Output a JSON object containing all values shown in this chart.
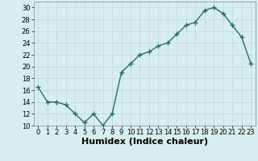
{
  "x": [
    0,
    1,
    2,
    3,
    4,
    5,
    6,
    7,
    8,
    9,
    10,
    11,
    12,
    13,
    14,
    15,
    16,
    17,
    18,
    19,
    20,
    21,
    22,
    23
  ],
  "y": [
    16.5,
    14.0,
    14.0,
    13.5,
    12.0,
    10.5,
    12.0,
    10.0,
    12.0,
    19.0,
    20.5,
    22.0,
    22.5,
    23.5,
    24.0,
    25.5,
    27.0,
    27.5,
    29.5,
    30.0,
    29.0,
    27.0,
    25.0,
    20.5
  ],
  "line_color": "#2e6b5e",
  "marker": "+",
  "marker_size": 4,
  "bg_color": "#d6eeee",
  "grid_color": "#c0d8d8",
  "xlabel": "Humidex (Indice chaleur)",
  "xlim": [
    -0.5,
    23.5
  ],
  "ylim": [
    10,
    31
  ],
  "yticks": [
    10,
    12,
    14,
    16,
    18,
    20,
    22,
    24,
    26,
    28,
    30
  ],
  "xticks": [
    0,
    1,
    2,
    3,
    4,
    5,
    6,
    7,
    8,
    9,
    10,
    11,
    12,
    13,
    14,
    15,
    16,
    17,
    18,
    19,
    20,
    21,
    22,
    23
  ],
  "tick_label_fontsize": 6,
  "xlabel_fontsize": 8,
  "line_width": 1.0
}
